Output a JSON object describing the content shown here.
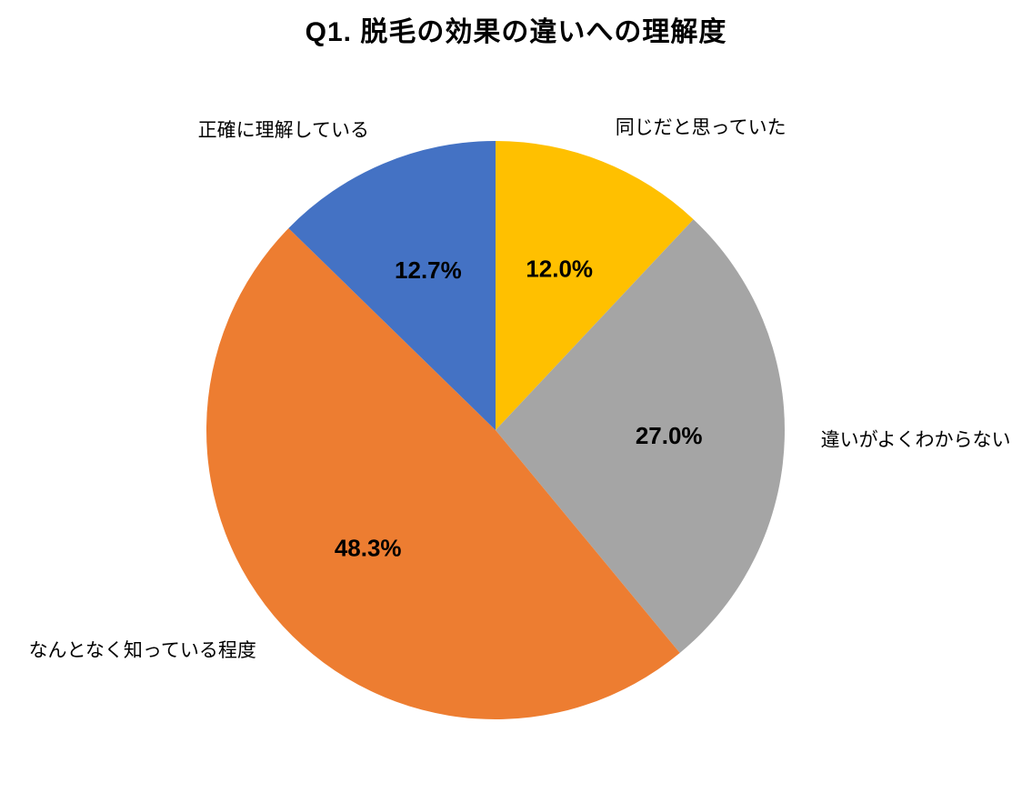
{
  "title": "Q1. 脱毛の効果の違いへの理解度",
  "chart_data": {
    "type": "pie",
    "title": "Q1. 脱毛の効果の違いへの理解度",
    "categories": [
      "同じだと思っていた",
      "違いがよくわからない",
      "なんとなく知っている程度",
      "正確に理解している"
    ],
    "values": [
      12.0,
      27.0,
      48.3,
      12.7
    ],
    "value_labels": [
      "12.0%",
      "27.0%",
      "48.3%",
      "12.7%"
    ],
    "colors": [
      "#FFC000",
      "#A5A5A5",
      "#ED7D31",
      "#4472C4"
    ],
    "start_angle_deg": 0,
    "direction": "clockwise",
    "label_position": "outside",
    "percent_label_position": "inside",
    "legend": "none",
    "background": "#FFFFFF",
    "text_color": "#000000"
  }
}
